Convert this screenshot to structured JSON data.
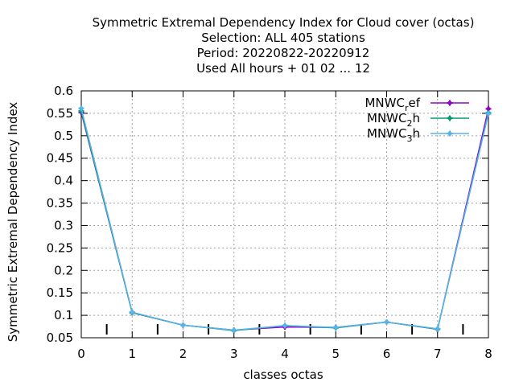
{
  "chart_data": {
    "type": "line",
    "title_lines": [
      "Symmetric Extremal Dependency Index  for Cloud cover (octas)",
      "Selection: ALL    405 stations",
      "Period: 20220822-20220912",
      "Used  All hours + 01 02 ... 12"
    ],
    "xlabel": "classes octas",
    "ylabel": "Symmetric Extremal Dependency Index",
    "xlim": [
      0,
      8
    ],
    "ylim": [
      0.05,
      0.6
    ],
    "xticks": [
      0,
      1,
      2,
      3,
      4,
      5,
      6,
      7,
      8
    ],
    "yticks": [
      0.05,
      0.1,
      0.15,
      0.2,
      0.25,
      0.3,
      0.35,
      0.4,
      0.45,
      0.5,
      0.55,
      0.6
    ],
    "ytick_labels": [
      "0.05",
      "0.1",
      "0.15",
      "0.2",
      "0.25",
      "0.3",
      "0.35",
      "0.4",
      "0.45",
      "0.5",
      "0.55",
      "0.6"
    ],
    "grid": true,
    "legend_position": "top-right",
    "class_boundaries": [
      0.5,
      1.5,
      2.5,
      3.5,
      4.5,
      5.5,
      6.5,
      7.5
    ],
    "x": [
      0,
      1,
      2,
      3,
      4,
      5,
      6,
      7,
      8
    ],
    "series": [
      {
        "name_main": "MNWC",
        "name_sub": "r",
        "name_rest": "ef",
        "color": "#9400d3",
        "values": [
          0.552,
          0.106,
          0.078,
          0.067,
          0.074,
          0.073,
          0.085,
          0.069,
          0.56
        ]
      },
      {
        "name_main": "MNWC",
        "name_sub": "2",
        "name_rest": "h",
        "color": "#009e73",
        "values": [
          0.555,
          0.106,
          0.078,
          0.066,
          0.077,
          0.072,
          0.085,
          0.069,
          0.551
        ]
      },
      {
        "name_main": "MNWC",
        "name_sub": "3",
        "name_rest": "h",
        "color": "#56b4e9",
        "values": [
          0.561,
          0.107,
          0.078,
          0.067,
          0.077,
          0.073,
          0.085,
          0.07,
          0.549
        ]
      }
    ]
  }
}
